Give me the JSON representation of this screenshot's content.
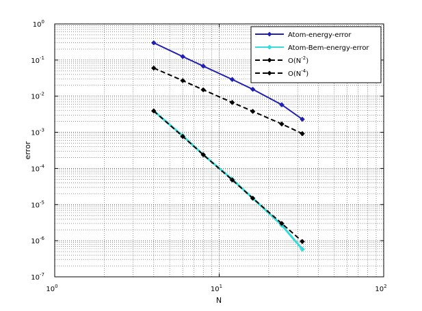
{
  "chart_data": {
    "type": "line",
    "title": "",
    "xlabel": "N",
    "ylabel": "error",
    "xscale": "log",
    "yscale": "log",
    "xlim": [
      1,
      100
    ],
    "ylim": [
      1e-07,
      1
    ],
    "grid": true,
    "legend_position": "top-right",
    "x_ticks": [
      {
        "base": "10",
        "exp": "0"
      },
      {
        "base": "10",
        "exp": "1"
      },
      {
        "base": "10",
        "exp": "2"
      }
    ],
    "y_ticks": [
      {
        "base": "10",
        "exp": "0"
      },
      {
        "base": "10",
        "exp": "-1"
      },
      {
        "base": "10",
        "exp": "-2"
      },
      {
        "base": "10",
        "exp": "-3"
      },
      {
        "base": "10",
        "exp": "-4"
      },
      {
        "base": "10",
        "exp": "-5"
      },
      {
        "base": "10",
        "exp": "-6"
      },
      {
        "base": "10",
        "exp": "-7"
      }
    ],
    "x": [
      4,
      6,
      8,
      12,
      16,
      24,
      32
    ],
    "series": [
      {
        "name": "Atom-energy-error",
        "color": "#1f1fb4",
        "dash": "solid",
        "values": [
          0.3,
          0.125,
          0.068,
          0.029,
          0.0155,
          0.0058,
          0.0023
        ]
      },
      {
        "name": "Atom-Bem-energy-error",
        "color": "#33dddd",
        "dash": "solid",
        "values": [
          0.0039,
          0.0008,
          0.00024,
          5e-05,
          1.5e-05,
          2.7e-06,
          5.8e-07
        ]
      },
      {
        "name": "O(N^-2)",
        "label_text": "O(N",
        "label_exp": "-2",
        "label_tail": ")",
        "color": "#000000",
        "dash": "dashed",
        "values": [
          0.06,
          0.027,
          0.015,
          0.0067,
          0.0038,
          0.0017,
          0.00092
        ]
      },
      {
        "name": "O(N^-4)",
        "label_text": "O(N",
        "label_exp": "-4",
        "label_tail": ")",
        "color": "#000000",
        "dash": "dashed",
        "values": [
          0.0039,
          0.00077,
          0.00024,
          4.8e-05,
          1.5e-05,
          3e-06,
          9.5e-07
        ]
      }
    ]
  }
}
